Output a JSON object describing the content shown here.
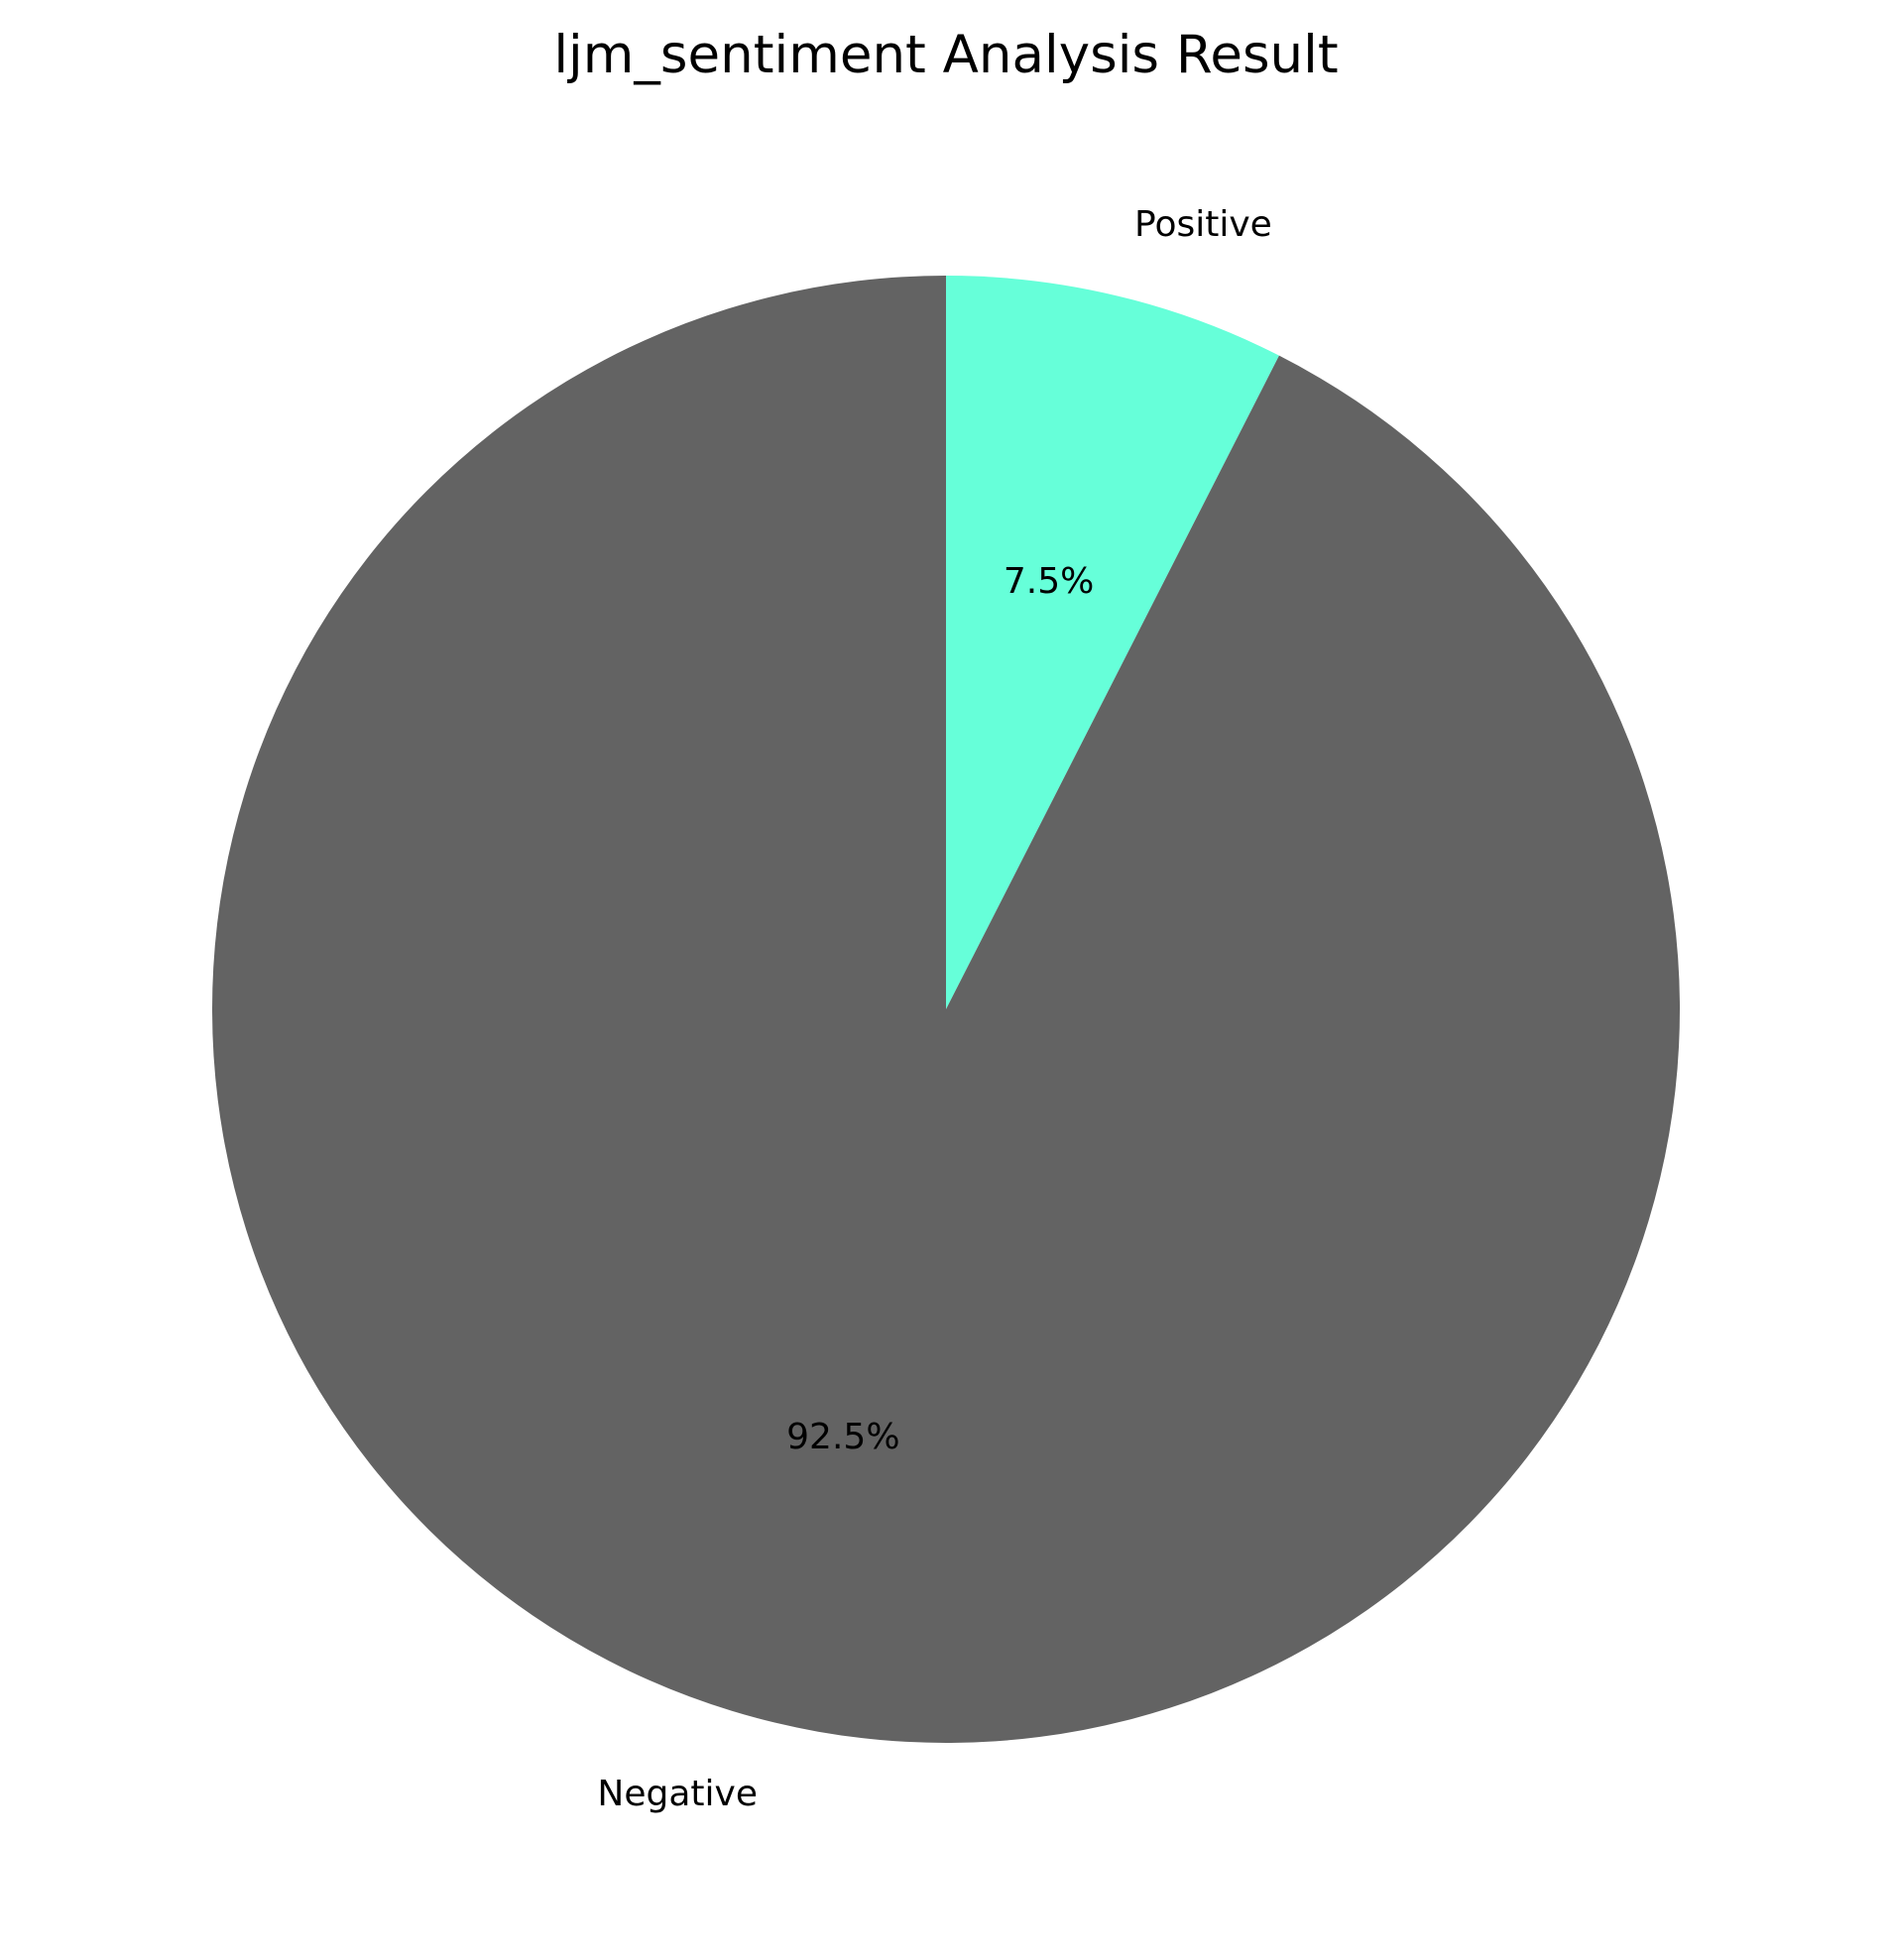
{
  "chart_data": {
    "type": "pie",
    "title": "ljm_sentiment Analysis Result",
    "start_angle_deg": 90,
    "direction": "clockwise",
    "slices": [
      {
        "label": "Positive",
        "value": 7.5,
        "percent_label": "7.5%",
        "color": "#66ffd9"
      },
      {
        "label": "Negative",
        "value": 92.5,
        "percent_label": "92.5%",
        "color": "#636363"
      }
    ]
  }
}
